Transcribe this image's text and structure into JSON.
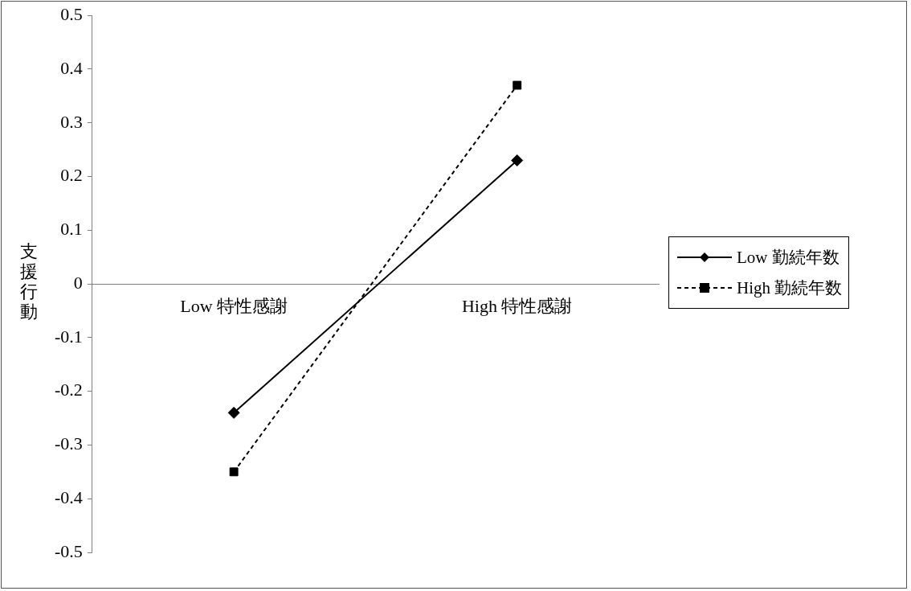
{
  "chart_data": {
    "type": "line",
    "ylabel": "支援行動",
    "categories": [
      "Low 特性感謝",
      "High 特性感謝"
    ],
    "series": [
      {
        "name": "Low 勤続年数",
        "color": "#000000",
        "values": [
          -0.24,
          0.23
        ],
        "marker": "diamond",
        "line_style": "solid"
      },
      {
        "name": "High 勤続年数",
        "color": "#000000",
        "values": [
          -0.35,
          0.37
        ],
        "marker": "square",
        "line_style": "dashed"
      }
    ],
    "ylim": [
      -0.5,
      0.5
    ],
    "yticks": [
      -0.5,
      -0.4,
      -0.3,
      -0.2,
      -0.1,
      0,
      0.1,
      0.2,
      0.3,
      0.4,
      0.5
    ],
    "grid": false,
    "legend": "right"
  }
}
